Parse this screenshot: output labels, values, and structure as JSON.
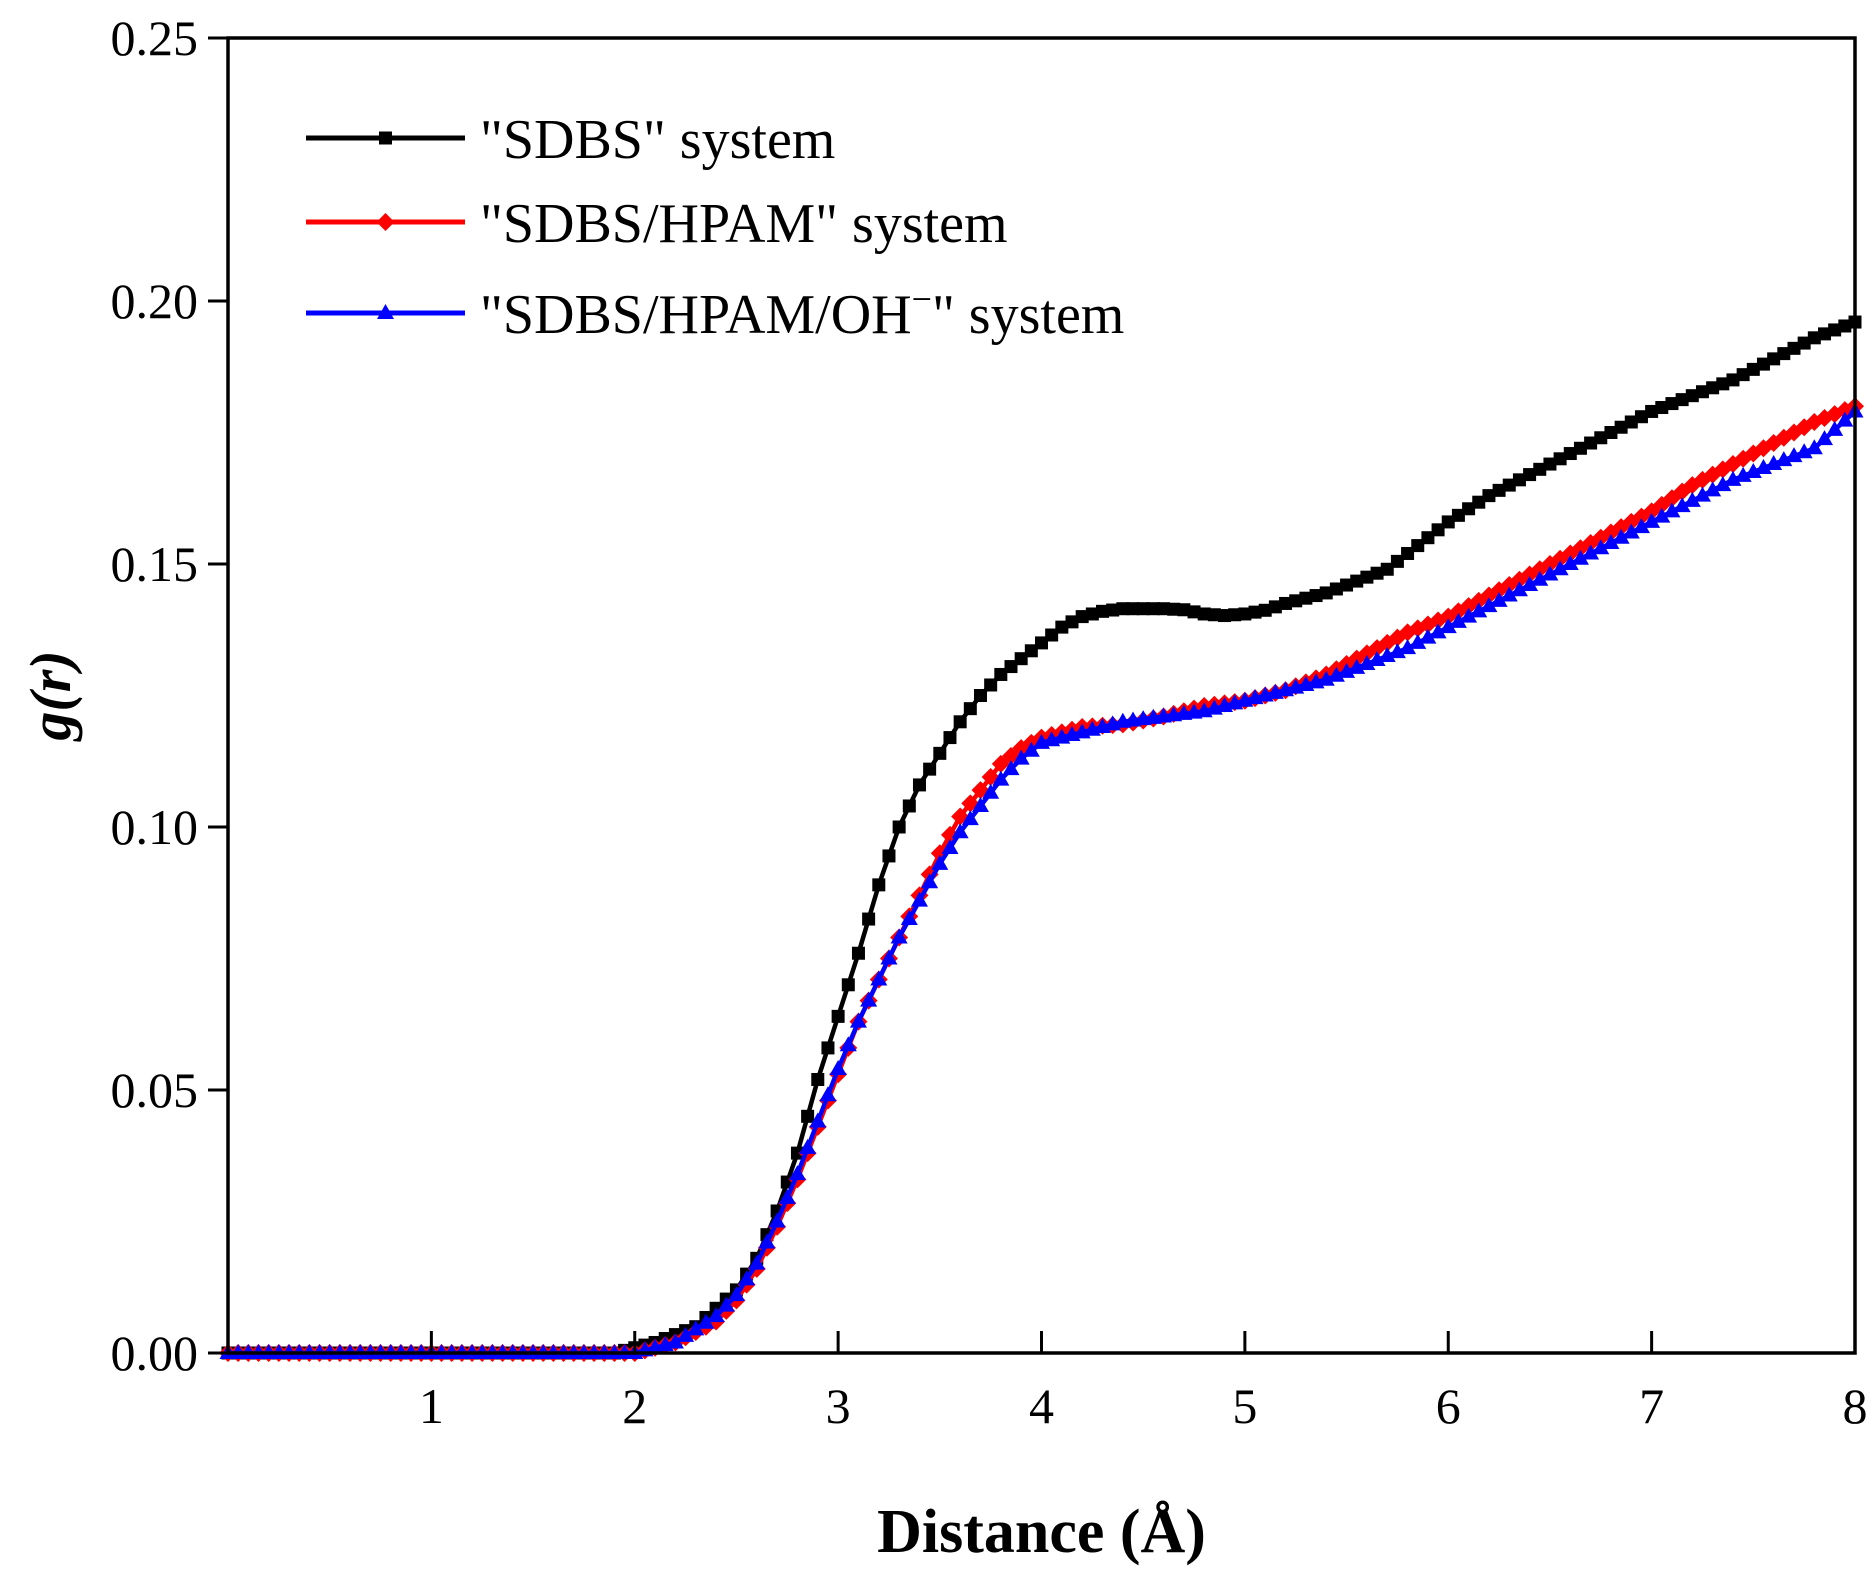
{
  "chart_data": {
    "type": "line",
    "xlabel": "Distance (Å)",
    "ylabel": "g(r)",
    "xlim": [
      0,
      8
    ],
    "ylim": [
      0,
      0.25
    ],
    "x_ticks": [
      1,
      2,
      3,
      4,
      5,
      6,
      7,
      8
    ],
    "x_tick_labels": [
      "1",
      "2",
      "3",
      "4",
      "5",
      "6",
      "7",
      "8"
    ],
    "y_ticks": [
      0,
      0.05,
      0.1,
      0.15,
      0.2,
      0.25
    ],
    "y_tick_labels": [
      "0.00",
      "0.05",
      "0.10",
      "0.15",
      "0.20",
      "0.25"
    ],
    "grid": false,
    "legend_position": "top-left",
    "series": [
      {
        "name": "\"SDBS\" system",
        "label_main": "\"SDBS\" system",
        "color": "#000000",
        "marker": "square",
        "points": [
          [
            0,
            0
          ],
          [
            1.9,
            0
          ],
          [
            2.1,
            0.002
          ],
          [
            2.3,
            0.005
          ],
          [
            2.5,
            0.012
          ],
          [
            2.6,
            0.018
          ],
          [
            2.7,
            0.027
          ],
          [
            2.8,
            0.038
          ],
          [
            2.9,
            0.052
          ],
          [
            3.0,
            0.064
          ],
          [
            3.1,
            0.076
          ],
          [
            3.2,
            0.089
          ],
          [
            3.3,
            0.1
          ],
          [
            3.4,
            0.108
          ],
          [
            3.5,
            0.114
          ],
          [
            3.6,
            0.12
          ],
          [
            3.7,
            0.125
          ],
          [
            3.8,
            0.129
          ],
          [
            3.9,
            0.132
          ],
          [
            4.0,
            0.135
          ],
          [
            4.1,
            0.138
          ],
          [
            4.2,
            0.14
          ],
          [
            4.3,
            0.141
          ],
          [
            4.4,
            0.1415
          ],
          [
            4.5,
            0.1415
          ],
          [
            4.6,
            0.1415
          ],
          [
            4.7,
            0.1413
          ],
          [
            4.8,
            0.1405
          ],
          [
            4.9,
            0.1402
          ],
          [
            5.0,
            0.1405
          ],
          [
            5.1,
            0.1412
          ],
          [
            5.2,
            0.1425
          ],
          [
            5.3,
            0.1435
          ],
          [
            5.4,
            0.1445
          ],
          [
            5.5,
            0.146
          ],
          [
            5.6,
            0.1475
          ],
          [
            5.7,
            0.149
          ],
          [
            5.8,
            0.152
          ],
          [
            5.9,
            0.155
          ],
          [
            6.0,
            0.158
          ],
          [
            6.2,
            0.163
          ],
          [
            6.4,
            0.167
          ],
          [
            6.6,
            0.171
          ],
          [
            6.8,
            0.175
          ],
          [
            7.0,
            0.179
          ],
          [
            7.2,
            0.182
          ],
          [
            7.4,
            0.185
          ],
          [
            7.6,
            0.189
          ],
          [
            7.8,
            0.193
          ],
          [
            8.0,
            0.196
          ]
        ]
      },
      {
        "name": "\"SDBS/HPAM\" system",
        "label_main": "\"SDBS/HPAM\" system",
        "color": "#ff0000",
        "marker": "diamond",
        "points": [
          [
            0,
            0
          ],
          [
            2.0,
            0
          ],
          [
            2.2,
            0.002
          ],
          [
            2.4,
            0.006
          ],
          [
            2.5,
            0.01
          ],
          [
            2.6,
            0.016
          ],
          [
            2.7,
            0.024
          ],
          [
            2.8,
            0.033
          ],
          [
            2.9,
            0.043
          ],
          [
            3.0,
            0.053
          ],
          [
            3.1,
            0.063
          ],
          [
            3.2,
            0.071
          ],
          [
            3.3,
            0.079
          ],
          [
            3.4,
            0.087
          ],
          [
            3.5,
            0.095
          ],
          [
            3.6,
            0.102
          ],
          [
            3.7,
            0.107
          ],
          [
            3.8,
            0.112
          ],
          [
            3.9,
            0.115
          ],
          [
            4.0,
            0.117
          ],
          [
            4.2,
            0.119
          ],
          [
            4.4,
            0.1195
          ],
          [
            4.6,
            0.121
          ],
          [
            4.8,
            0.123
          ],
          [
            5.0,
            0.124
          ],
          [
            5.2,
            0.126
          ],
          [
            5.4,
            0.129
          ],
          [
            5.6,
            0.133
          ],
          [
            5.8,
            0.137
          ],
          [
            6.0,
            0.14
          ],
          [
            6.2,
            0.144
          ],
          [
            6.4,
            0.148
          ],
          [
            6.6,
            0.152
          ],
          [
            6.8,
            0.156
          ],
          [
            7.0,
            0.16
          ],
          [
            7.2,
            0.165
          ],
          [
            7.4,
            0.169
          ],
          [
            7.6,
            0.173
          ],
          [
            7.8,
            0.177
          ],
          [
            8.0,
            0.18
          ]
        ]
      },
      {
        "name": "\"SDBS/HPAM/OH−\" system",
        "label_main": "\"SDBS/HPAM/OH",
        "label_sup": "−",
        "label_tail": "\" system",
        "color": "#0000ff",
        "marker": "triangle",
        "points": [
          [
            0,
            0
          ],
          [
            2.0,
            0
          ],
          [
            2.2,
            0.002
          ],
          [
            2.4,
            0.007
          ],
          [
            2.5,
            0.011
          ],
          [
            2.6,
            0.017
          ],
          [
            2.7,
            0.025
          ],
          [
            2.8,
            0.034
          ],
          [
            2.9,
            0.044
          ],
          [
            3.0,
            0.054
          ],
          [
            3.1,
            0.063
          ],
          [
            3.2,
            0.071
          ],
          [
            3.3,
            0.079
          ],
          [
            3.4,
            0.086
          ],
          [
            3.5,
            0.093
          ],
          [
            3.6,
            0.099
          ],
          [
            3.7,
            0.104
          ],
          [
            3.8,
            0.109
          ],
          [
            3.9,
            0.113
          ],
          [
            4.0,
            0.116
          ],
          [
            4.2,
            0.118
          ],
          [
            4.4,
            0.12
          ],
          [
            4.6,
            0.121
          ],
          [
            4.8,
            0.122
          ],
          [
            5.0,
            0.124
          ],
          [
            5.2,
            0.126
          ],
          [
            5.4,
            0.128
          ],
          [
            5.6,
            0.131
          ],
          [
            5.8,
            0.134
          ],
          [
            6.0,
            0.138
          ],
          [
            6.2,
            0.142
          ],
          [
            6.4,
            0.146
          ],
          [
            6.6,
            0.15
          ],
          [
            6.8,
            0.154
          ],
          [
            7.0,
            0.158
          ],
          [
            7.2,
            0.162
          ],
          [
            7.4,
            0.166
          ],
          [
            7.6,
            0.169
          ],
          [
            7.8,
            0.172
          ],
          [
            8.0,
            0.179
          ]
        ]
      }
    ]
  }
}
